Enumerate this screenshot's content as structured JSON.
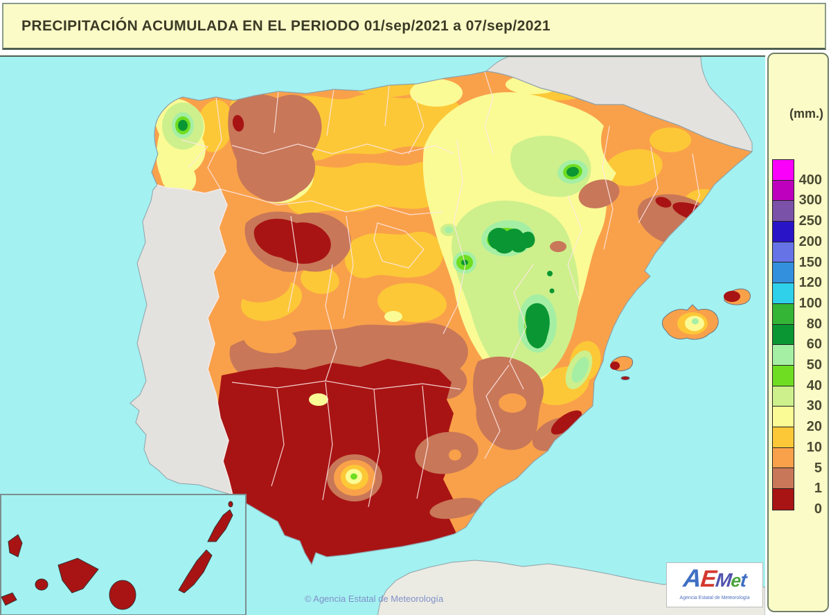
{
  "title_bar": {
    "title": "PRECIPITACIÓN ACUMULADA EN EL PERIODO  01/sep/2021 a 07/sep/2021"
  },
  "legend": {
    "units_label": "(mm.)",
    "entries": [
      {
        "label": "400",
        "color": "#FA00FA"
      },
      {
        "label": "300",
        "color": "#BE00BE"
      },
      {
        "label": "250",
        "color": "#7A52A8"
      },
      {
        "label": "200",
        "color": "#2A14C8"
      },
      {
        "label": "150",
        "color": "#6673E6"
      },
      {
        "label": "120",
        "color": "#3390DC"
      },
      {
        "label": "100",
        "color": "#2FD0EA"
      },
      {
        "label": "80",
        "color": "#35B535"
      },
      {
        "label": "60",
        "color": "#0A9632"
      },
      {
        "label": "50",
        "color": "#A5EFA5"
      },
      {
        "label": "40",
        "color": "#6FDD22"
      },
      {
        "label": "30",
        "color": "#CDEF8C"
      },
      {
        "label": "20",
        "color": "#FBFB96"
      },
      {
        "label": "10",
        "color": "#FDC838"
      },
      {
        "label": "5",
        "color": "#F9A04A"
      },
      {
        "label": "1",
        "color": "#C87858"
      },
      {
        "label": "0",
        "color": "#A81414"
      }
    ]
  },
  "map": {
    "attribution": "© Agencia Estatal de Meteorología",
    "logo": {
      "brand": "AEMet",
      "brand_letters": [
        {
          "ch": "A",
          "color": "#3e6fc4",
          "size": 36
        },
        {
          "ch": "E",
          "color": "#d4372e",
          "size": 34
        },
        {
          "ch": "M",
          "color": "#5153ae",
          "size": 28
        },
        {
          "ch": "e",
          "color": "#4ca43f",
          "size": 26
        },
        {
          "ch": "t",
          "color": "#3e6fc4",
          "size": 28
        }
      ],
      "subtitle": "Agencia Estatal de Meteorología"
    }
  },
  "colors": {
    "sea": "#A3F1F1",
    "panel_bg": "#FBFBC8",
    "neighbor_land": "#E4E2DE",
    "africa_land": "#ECEBE3",
    "frame_border": "#4f5f4f"
  }
}
